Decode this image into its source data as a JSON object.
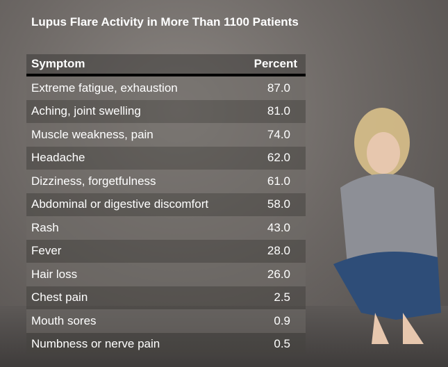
{
  "header": {
    "title": "Lupus Flare Activity in More Than 1100 Patients"
  },
  "table": {
    "columns": [
      "Symptom",
      "Percent"
    ],
    "rows": [
      [
        "Extreme fatigue, exhaustion",
        "87.0"
      ],
      [
        "Aching, joint swelling",
        "81.0"
      ],
      [
        "Muscle weakness, pain",
        "74.0"
      ],
      [
        "Headache",
        "62.0"
      ],
      [
        "Dizziness, forgetfulness",
        "61.0"
      ],
      [
        "Abdominal or digestive discomfort",
        "58.0"
      ],
      [
        "Rash",
        "43.0"
      ],
      [
        "Fever",
        "28.0"
      ],
      [
        "Hair loss",
        "26.0"
      ],
      [
        "Chest pain",
        "2.5"
      ],
      [
        "Mouth sores",
        "0.9"
      ],
      [
        "Numbness or nerve pain",
        "0.5"
      ]
    ]
  }
}
